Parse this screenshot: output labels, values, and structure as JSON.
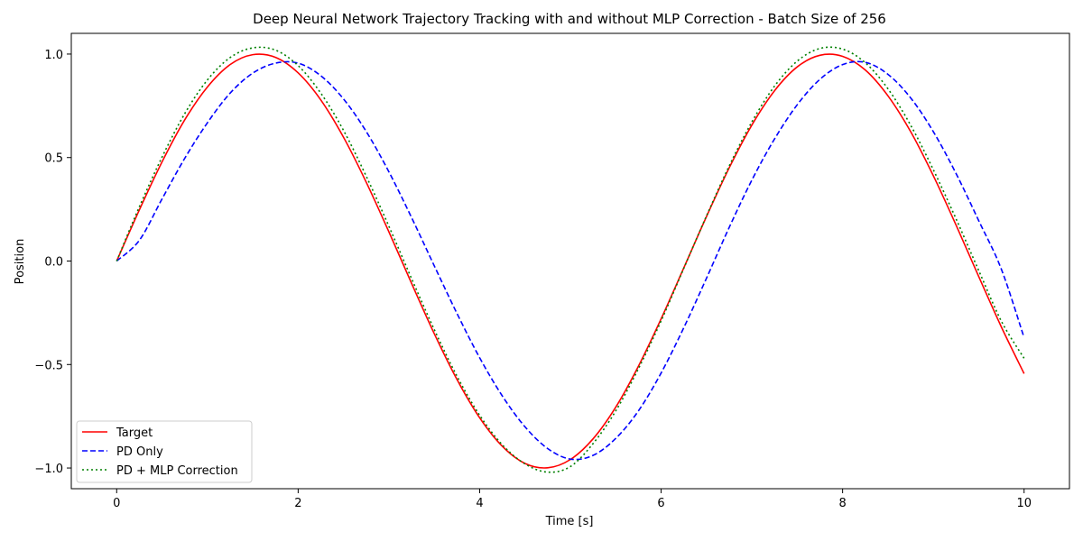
{
  "chart_data": {
    "type": "line",
    "title": "Deep Neural Network Trajectory Tracking with and without MLP Correction - Batch Size of 256",
    "xlabel": "Time [s]",
    "ylabel": "Position",
    "xlim": [
      -0.5,
      10.5
    ],
    "ylim": [
      -1.1,
      1.1
    ],
    "xticks": [
      0,
      2,
      4,
      6,
      8,
      10
    ],
    "xtick_labels": [
      "0",
      "2",
      "4",
      "6",
      "8",
      "10"
    ],
    "yticks": [
      -1.0,
      -0.5,
      0.0,
      0.5,
      1.0
    ],
    "ytick_labels": [
      "−1.0",
      "−0.5",
      "0.0",
      "0.5",
      "1.0"
    ],
    "grid": false,
    "legend_position": "lower-left",
    "x": [
      0,
      0.25,
      0.5,
      0.75,
      1.0,
      1.25,
      1.5,
      1.75,
      2.0,
      2.25,
      2.5,
      2.75,
      3.0,
      3.25,
      3.5,
      3.75,
      4.0,
      4.25,
      4.5,
      4.75,
      5.0,
      5.25,
      5.5,
      5.75,
      6.0,
      6.25,
      6.5,
      6.75,
      7.0,
      7.25,
      7.5,
      7.75,
      8.0,
      8.25,
      8.5,
      8.75,
      9.0,
      9.25,
      9.5,
      9.75,
      10.0
    ],
    "series": [
      {
        "name": "Target",
        "color": "#ff0000",
        "dash": "solid",
        "values": [
          0.0,
          0.247,
          0.479,
          0.682,
          0.841,
          0.949,
          0.997,
          0.984,
          0.909,
          0.778,
          0.598,
          0.381,
          0.141,
          -0.108,
          -0.351,
          -0.572,
          -0.757,
          -0.895,
          -0.978,
          -0.999,
          -0.959,
          -0.859,
          -0.706,
          -0.508,
          -0.279,
          -0.033,
          0.215,
          0.45,
          0.657,
          0.823,
          0.938,
          0.994,
          0.989,
          0.923,
          0.798,
          0.625,
          0.412,
          0.174,
          -0.075,
          -0.319,
          -0.544
        ]
      },
      {
        "name": "PD Only",
        "color": "#0000ff",
        "dash": "dashed",
        "values": [
          0.0,
          0.1,
          0.3,
          0.496,
          0.668,
          0.811,
          0.908,
          0.956,
          0.956,
          0.895,
          0.783,
          0.626,
          0.431,
          0.21,
          -0.023,
          -0.253,
          -0.467,
          -0.652,
          -0.801,
          -0.906,
          -0.957,
          -0.939,
          -0.857,
          -0.724,
          -0.541,
          -0.322,
          -0.083,
          0.162,
          0.391,
          0.59,
          0.755,
          0.878,
          0.949,
          0.96,
          0.902,
          0.788,
          0.625,
          0.423,
          0.195,
          -0.04,
          -0.37
        ]
      },
      {
        "name": "PD + MLP Correction",
        "color": "#008000",
        "dash": "dotted",
        "values": [
          0.0,
          0.262,
          0.502,
          0.712,
          0.875,
          0.983,
          1.03,
          1.019,
          0.944,
          0.811,
          0.631,
          0.41,
          0.168,
          -0.085,
          -0.331,
          -0.556,
          -0.745,
          -0.888,
          -0.98,
          -1.02,
          -0.993,
          -0.882,
          -0.724,
          -0.52,
          -0.289,
          -0.035,
          0.218,
          0.459,
          0.672,
          0.845,
          0.966,
          1.027,
          1.024,
          0.958,
          0.832,
          0.656,
          0.441,
          0.204,
          -0.046,
          -0.291,
          -0.47
        ]
      }
    ]
  }
}
